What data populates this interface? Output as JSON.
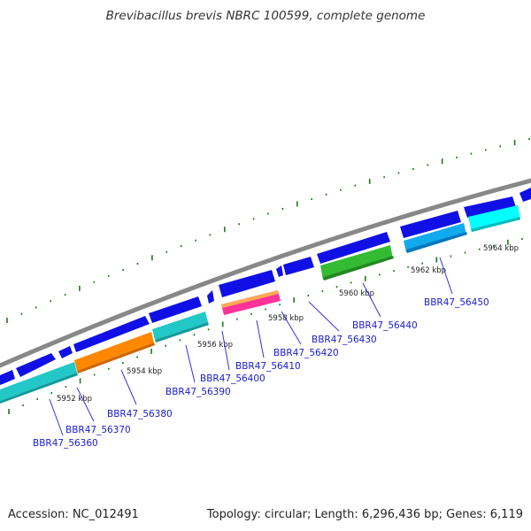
{
  "title": "Brevibacillus brevis NBRC 100599, complete genome",
  "footer": {
    "accession": "Accession: NC_012491",
    "summary": "Topology: circular; Length: 6,296,436 bp; Genes: 6,119"
  },
  "colors": {
    "backbone": "#888888",
    "tick": "#1a7a1a",
    "forward_gene": "#1010e6",
    "label": "#1a1acc",
    "label_line": "#3333dd"
  },
  "scale_labels": [
    "5952 kbp",
    "5954 kbp",
    "5956 kbp",
    "5958 kbp",
    "5960 kbp",
    "5962 kbp",
    "5964 kbp"
  ],
  "gene_labels": [
    "BBR47_56360",
    "BBR47_56370",
    "BBR47_56380",
    "BBR47_56390",
    "BBR47_56400",
    "BBR47_56410",
    "BBR47_56420",
    "BBR47_56430",
    "BBR47_56440",
    "BBR47_56450"
  ],
  "feature_colors": [
    "#22c8c8",
    "#ff8800",
    "#22c8c8",
    "#ff3399",
    "#33bb33",
    "#11aaee",
    "#00ffff"
  ]
}
